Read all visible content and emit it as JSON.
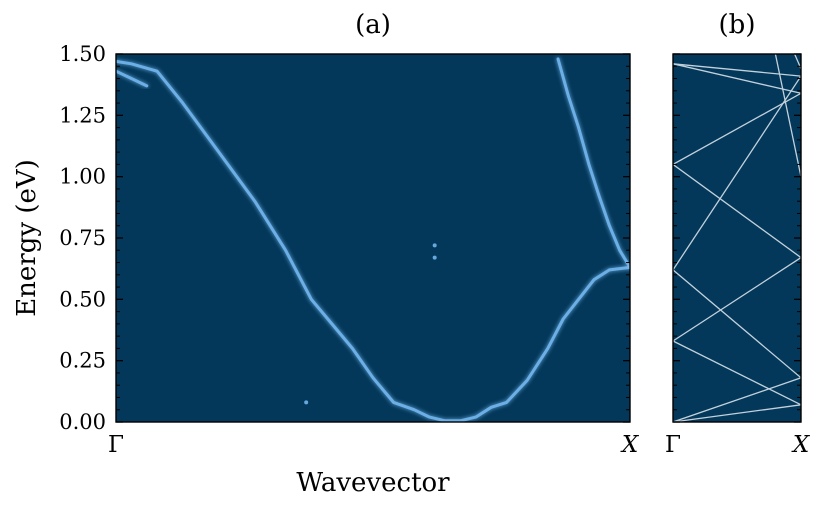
{
  "chart_data": [
    {
      "panel": "(a)",
      "type": "heatmap",
      "title": "(a)",
      "xlabel": "Wavevector",
      "ylabel": "Energy (eV)",
      "ylim": [
        0,
        1.5
      ],
      "x_ticks": [
        "Γ",
        "X"
      ],
      "y_ticks": [
        "0.00",
        "0.25",
        "0.50",
        "0.75",
        "1.00",
        "1.25",
        "1.50"
      ],
      "grid": false,
      "background_color": "#03385a",
      "band_color": "#7fc4ff",
      "series": [
        {
          "x": [
            0.0,
            0.03,
            0.08,
            0.13,
            0.2,
            0.27,
            0.33,
            0.38,
            0.42,
            0.46,
            0.5,
            0.54,
            0.58,
            0.61,
            0.64,
            0.67,
            0.7,
            0.73,
            0.76,
            0.8,
            0.84,
            0.87,
            0.9,
            0.93,
            0.96,
            1.0
          ],
          "y": [
            1.47,
            1.46,
            1.43,
            1.3,
            1.1,
            0.9,
            0.7,
            0.5,
            0.4,
            0.3,
            0.18,
            0.08,
            0.05,
            0.02,
            0.005,
            0.005,
            0.02,
            0.06,
            0.08,
            0.17,
            0.3,
            0.42,
            0.5,
            0.58,
            0.62,
            0.63
          ]
        },
        {
          "x": [
            0.86,
            0.88,
            0.9,
            0.92,
            0.94,
            0.96,
            0.98,
            1.0
          ],
          "y": [
            1.48,
            1.33,
            1.2,
            1.05,
            0.92,
            0.8,
            0.7,
            0.63
          ]
        },
        {
          "x": [
            0.0,
            0.03,
            0.06
          ],
          "y": [
            1.43,
            1.4,
            1.37
          ]
        }
      ],
      "spots": [
        {
          "x": 0.62,
          "y": 0.72
        },
        {
          "x": 0.62,
          "y": 0.67
        },
        {
          "x": 0.37,
          "y": 0.08
        }
      ]
    },
    {
      "panel": "(b)",
      "type": "line",
      "title": "(b)",
      "ylim": [
        0,
        1.5
      ],
      "x_ticks": [
        "Γ",
        "X"
      ],
      "grid": false,
      "background_color": "#03385a",
      "line_color": "#c2d1dc",
      "series": [
        {
          "x": [
            0,
            1
          ],
          "y": [
            0,
            0.07
          ]
        },
        {
          "x": [
            0,
            1
          ],
          "y": [
            0,
            0.18
          ]
        },
        {
          "x": [
            0,
            1
          ],
          "y": [
            0.33,
            0.07
          ]
        },
        {
          "x": [
            0,
            1
          ],
          "y": [
            0.33,
            0.67
          ]
        },
        {
          "x": [
            0,
            1
          ],
          "y": [
            0.62,
            0.18
          ]
        },
        {
          "x": [
            0,
            1
          ],
          "y": [
            0.62,
            1.41
          ]
        },
        {
          "x": [
            0,
            1
          ],
          "y": [
            1.05,
            0.67
          ]
        },
        {
          "x": [
            0,
            1
          ],
          "y": [
            1.05,
            1.34
          ]
        },
        {
          "x": [
            0,
            1
          ],
          "y": [
            1.46,
            1.41
          ]
        },
        {
          "x": [
            0,
            1
          ],
          "y": [
            1.46,
            1.34
          ]
        },
        {
          "x": [
            0.8,
            1
          ],
          "y": [
            1.5,
            1.0
          ]
        },
        {
          "x": [
            0.95,
            1
          ],
          "y": [
            1.5,
            1.44
          ]
        }
      ]
    }
  ]
}
